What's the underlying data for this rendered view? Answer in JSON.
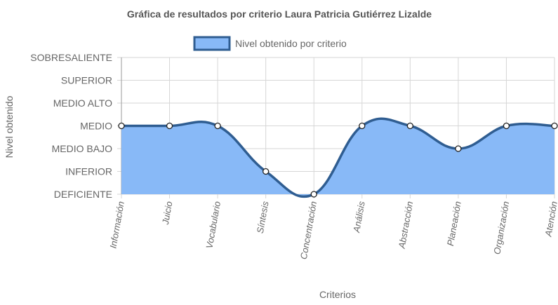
{
  "chart_data": {
    "type": "area",
    "title": "Gráfica de resultados por criterio Laura Patricia Gutiérrez Lizalde",
    "xlabel": "Criterios",
    "ylabel": "Nivel obtenido",
    "categories": [
      "Información",
      "Juicio",
      "Vocabulario",
      "Síntesis",
      "Concentración",
      "Análisis",
      "Abstracción",
      "Planeación",
      "Organización",
      "Atención"
    ],
    "y_levels": [
      "DEFICIENTE",
      "INFERIOR",
      "MEDIO BAJO",
      "MEDIO",
      "MEDIO ALTO",
      "SUPERIOR",
      "SOBRESALIENTE"
    ],
    "ylim": [
      0,
      6
    ],
    "series": [
      {
        "name": "Nivel obtenido por criterio",
        "values": [
          3,
          3,
          3,
          1,
          0,
          3,
          3,
          2,
          3,
          3
        ]
      }
    ],
    "legend_position": "top",
    "grid": true,
    "colors": {
      "fill": "#88b9f7",
      "line": "#2f5d91",
      "point_fill": "#ffffff",
      "point_stroke": "#222222"
    }
  }
}
